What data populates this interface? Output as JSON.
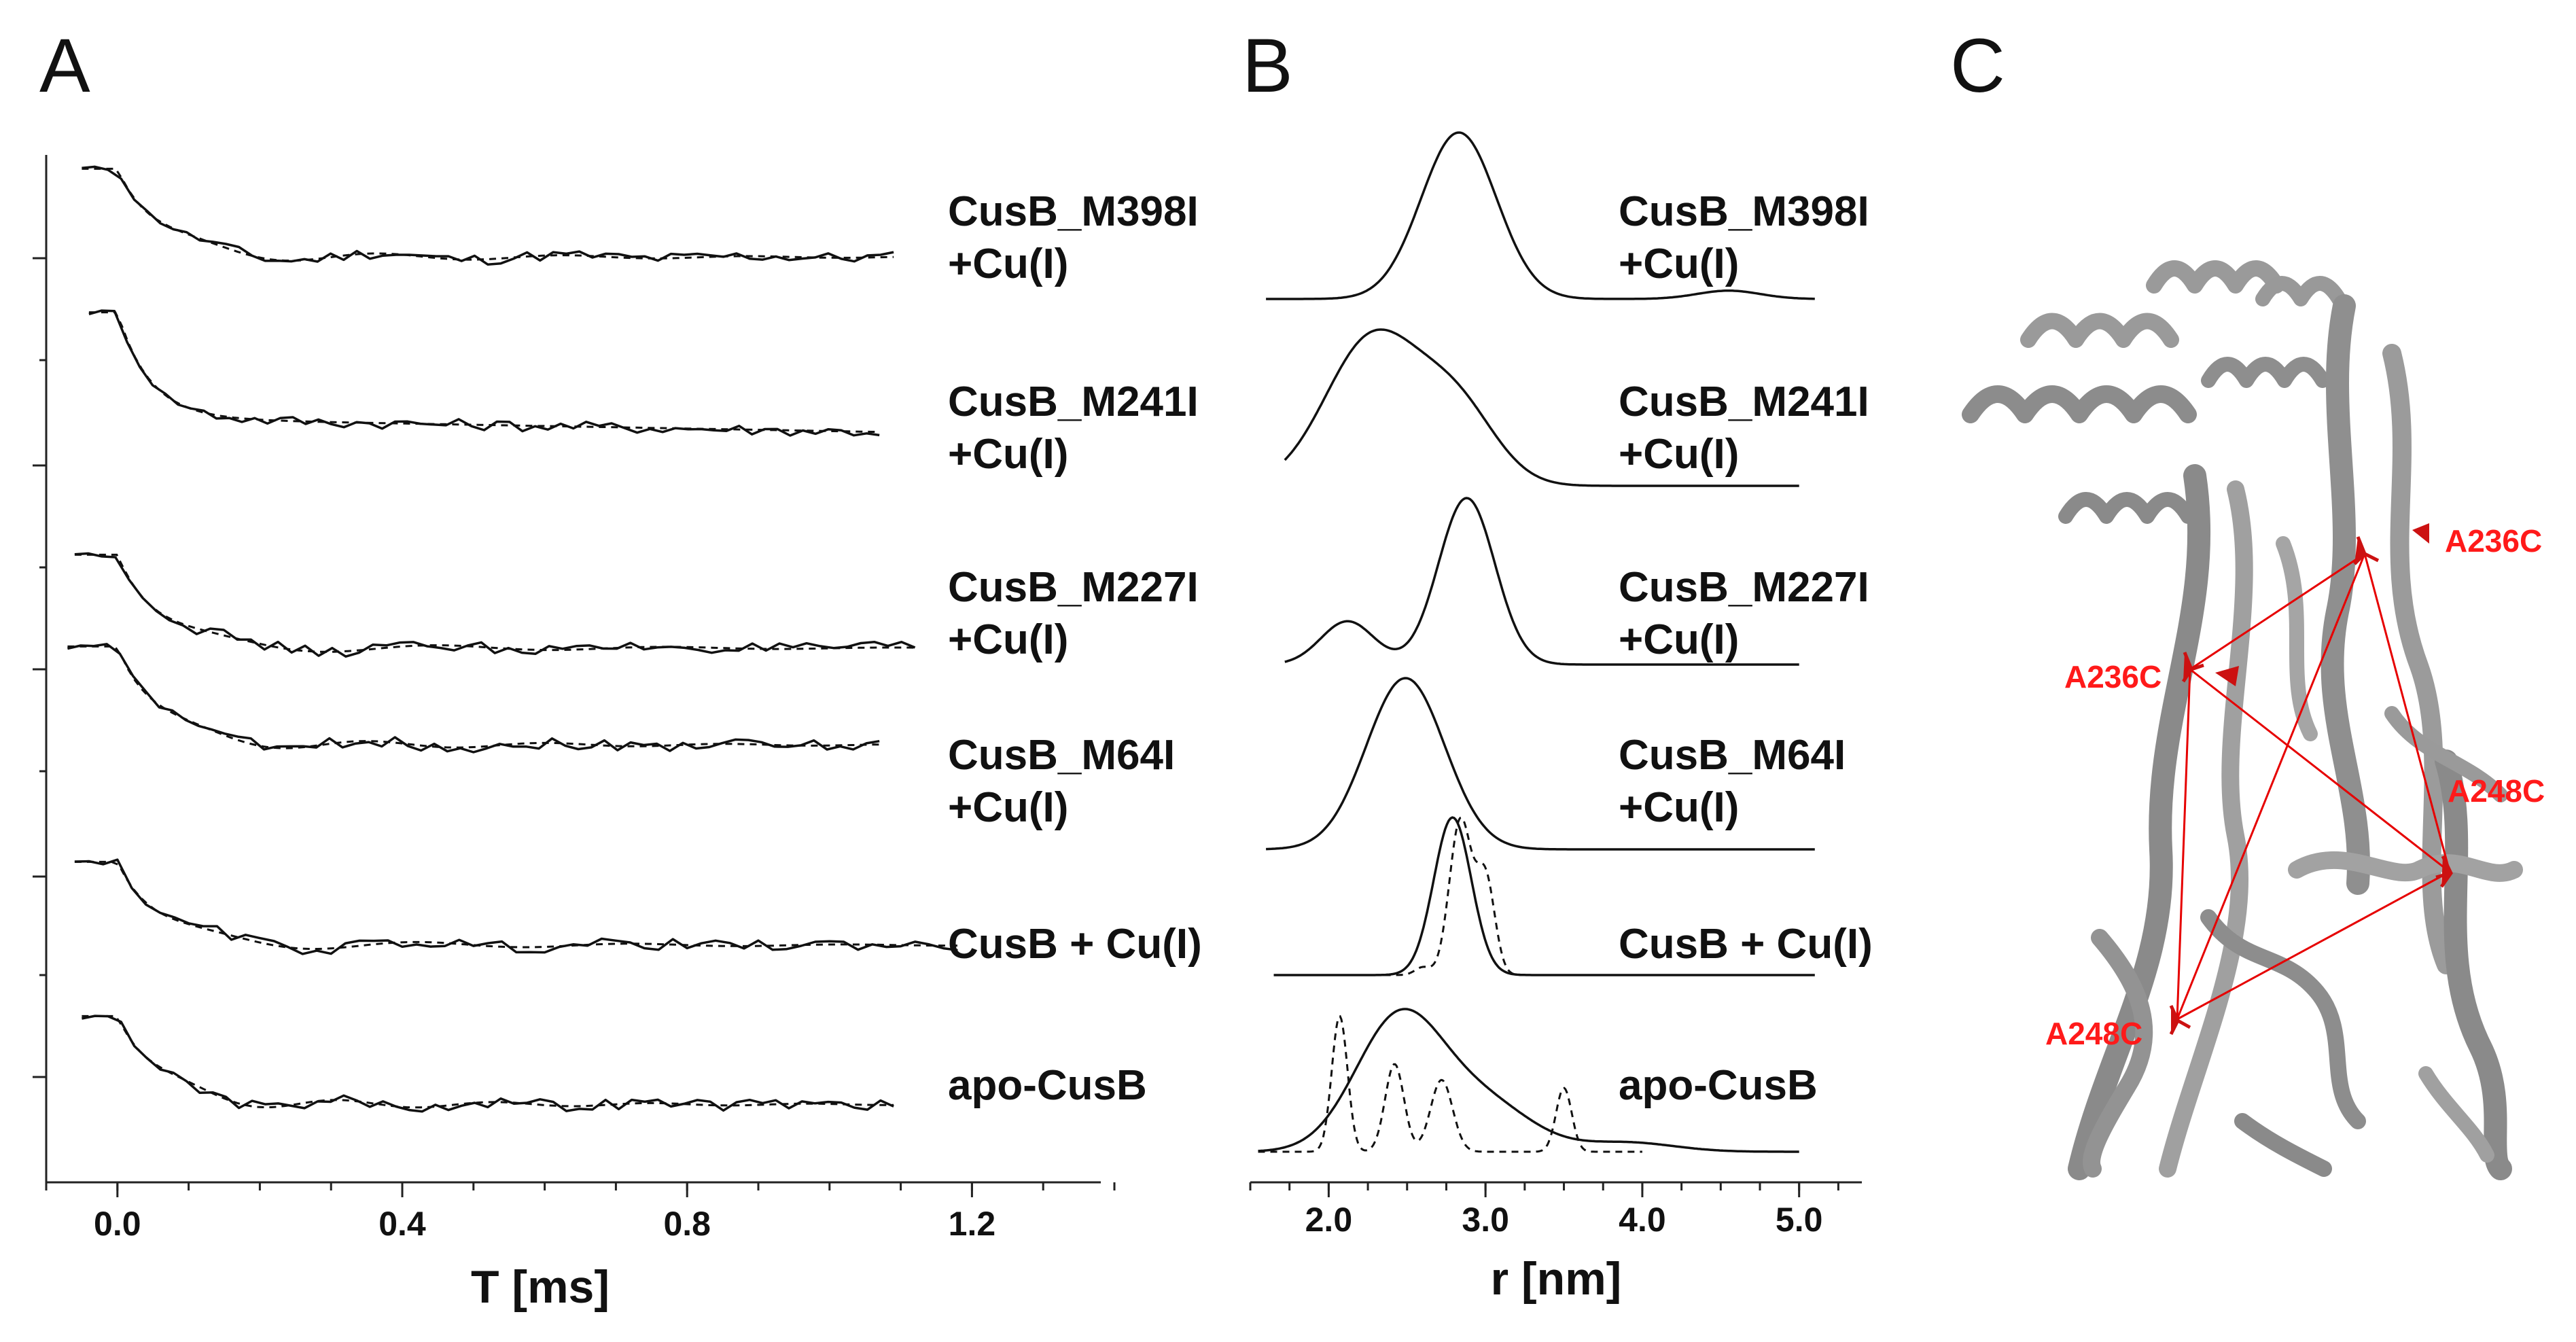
{
  "panels": {
    "a_letter": "A",
    "b_letter": "B",
    "c_letter": "C"
  },
  "chart_data": [
    {
      "type": "line",
      "panel": "A",
      "title": "",
      "xlabel": "T [ms]",
      "ylabel": "",
      "xlim": [
        -0.1,
        1.4
      ],
      "xticks": [
        "0.0",
        "0.4",
        "0.8",
        "1.2"
      ],
      "xtick_values": [
        0.0,
        0.4,
        0.8,
        1.2
      ],
      "legend": "none",
      "series": [
        {
          "name": "CusB_M398I +Cu(I)",
          "label_lines": [
            "CusB_M398I",
            "+Cu(I)"
          ],
          "modulation_depth": 0.38,
          "oscillation_ms": 0.26,
          "tmin": -0.05,
          "tmax": 1.09
        },
        {
          "name": "CusB_M241I +Cu(I)",
          "label_lines": [
            "CusB_M241I",
            "+Cu(I)"
          ],
          "modulation_depth": 0.42,
          "oscillation_ms": 0,
          "tmin": -0.04,
          "tmax": 1.07
        },
        {
          "name": "CusB_M227I +Cu(I)",
          "label_lines": [
            "CusB_M227I",
            "+Cu(I)"
          ],
          "modulation_depth": 0.4,
          "oscillation_ms": 0.32,
          "tmin": -0.06,
          "tmax": 1.12
        },
        {
          "name": "CusB_M64I +Cu(I)",
          "label_lines": [
            "CusB_M64I",
            "+Cu(I)"
          ],
          "modulation_depth": 0.42,
          "oscillation_ms": 0.25,
          "tmin": -0.07,
          "tmax": 1.07
        },
        {
          "name": "CusB + Cu(I)",
          "label_lines": [
            "CusB + Cu(I)"
          ],
          "modulation_depth": 0.36,
          "oscillation_ms": 0.3,
          "tmin": -0.06,
          "tmax": 1.18
        },
        {
          "name": "apo-CusB",
          "label_lines": [
            "apo-CusB"
          ],
          "modulation_depth": 0.38,
          "oscillation_ms": 0.22,
          "tmin": -0.05,
          "tmax": 1.09
        }
      ]
    },
    {
      "type": "line",
      "panel": "B",
      "title": "",
      "xlabel": "r [nm]",
      "ylabel": "",
      "xlim": [
        1.5,
        5.4
      ],
      "xticks": [
        "2.0",
        "3.0",
        "4.0",
        "5.0"
      ],
      "xtick_values": [
        2.0,
        3.0,
        4.0,
        5.0
      ],
      "legend": "none",
      "series": [
        {
          "name": "CusB_M398I +Cu(I)",
          "label_lines": [
            "CusB_M398I",
            "+Cu(I)"
          ],
          "r_start": 1.6,
          "r_end": 5.1,
          "peaks": [
            {
              "r": 2.83,
              "height": 1.0,
              "width": 0.24
            },
            {
              "r": 4.55,
              "height": 0.05,
              "width": 0.2
            }
          ]
        },
        {
          "name": "CusB_M241I +Cu(I)",
          "label_lines": [
            "CusB_M241I",
            "+Cu(I)"
          ],
          "r_start": 1.72,
          "r_end": 5.0,
          "peaks": [
            {
              "r": 2.28,
              "height": 0.9,
              "width": 0.3
            },
            {
              "r": 2.82,
              "height": 0.45,
              "width": 0.25
            }
          ]
        },
        {
          "name": "CusB_M227I +Cu(I)",
          "label_lines": [
            "CusB_M227I",
            "+Cu(I)"
          ],
          "r_start": 1.72,
          "r_end": 5.0,
          "peaks": [
            {
              "r": 2.12,
              "height": 0.26,
              "width": 0.17
            },
            {
              "r": 2.88,
              "height": 1.0,
              "width": 0.18
            }
          ]
        },
        {
          "name": "CusB_M64I +Cu(I)",
          "label_lines": [
            "CusB_M64I",
            "+Cu(I)"
          ],
          "r_start": 1.6,
          "r_end": 5.1,
          "peaks": [
            {
              "r": 2.49,
              "height": 1.0,
              "width": 0.25
            }
          ]
        },
        {
          "name": "CusB + Cu(I)",
          "label_lines": [
            "CusB + Cu(I)"
          ],
          "r_start": 1.65,
          "r_end": 5.1,
          "peaks": [
            {
              "r": 2.79,
              "height": 1.0,
              "width": 0.12
            }
          ],
          "dashed_peaks": [
            {
              "r": 2.84,
              "height": 1.0,
              "width": 0.07
            },
            {
              "r": 3.0,
              "height": 0.62,
              "width": 0.06
            },
            {
              "r": 2.6,
              "height": 0.05,
              "width": 0.05
            }
          ]
        },
        {
          "name": "apo-CusB",
          "label_lines": [
            "apo-CusB"
          ],
          "r_start": 1.55,
          "r_end": 5.0,
          "peaks": [
            {
              "r": 2.45,
              "height": 0.86,
              "width": 0.28
            },
            {
              "r": 3.0,
              "height": 0.3,
              "width": 0.3
            },
            {
              "r": 3.9,
              "height": 0.06,
              "width": 0.3
            }
          ],
          "dashed_peaks": [
            {
              "r": 2.07,
              "height": 0.85,
              "width": 0.05
            },
            {
              "r": 2.42,
              "height": 0.55,
              "width": 0.06
            },
            {
              "r": 2.72,
              "height": 0.45,
              "width": 0.07
            },
            {
              "r": 3.5,
              "height": 0.4,
              "width": 0.05
            }
          ]
        }
      ]
    }
  ],
  "structure": {
    "site_labels": [
      "A236C",
      "A236C",
      "A248C",
      "A248C"
    ],
    "protein_color": "#8c8c8c",
    "label_color": "#ff1a1a",
    "line_color": "#e60000"
  }
}
